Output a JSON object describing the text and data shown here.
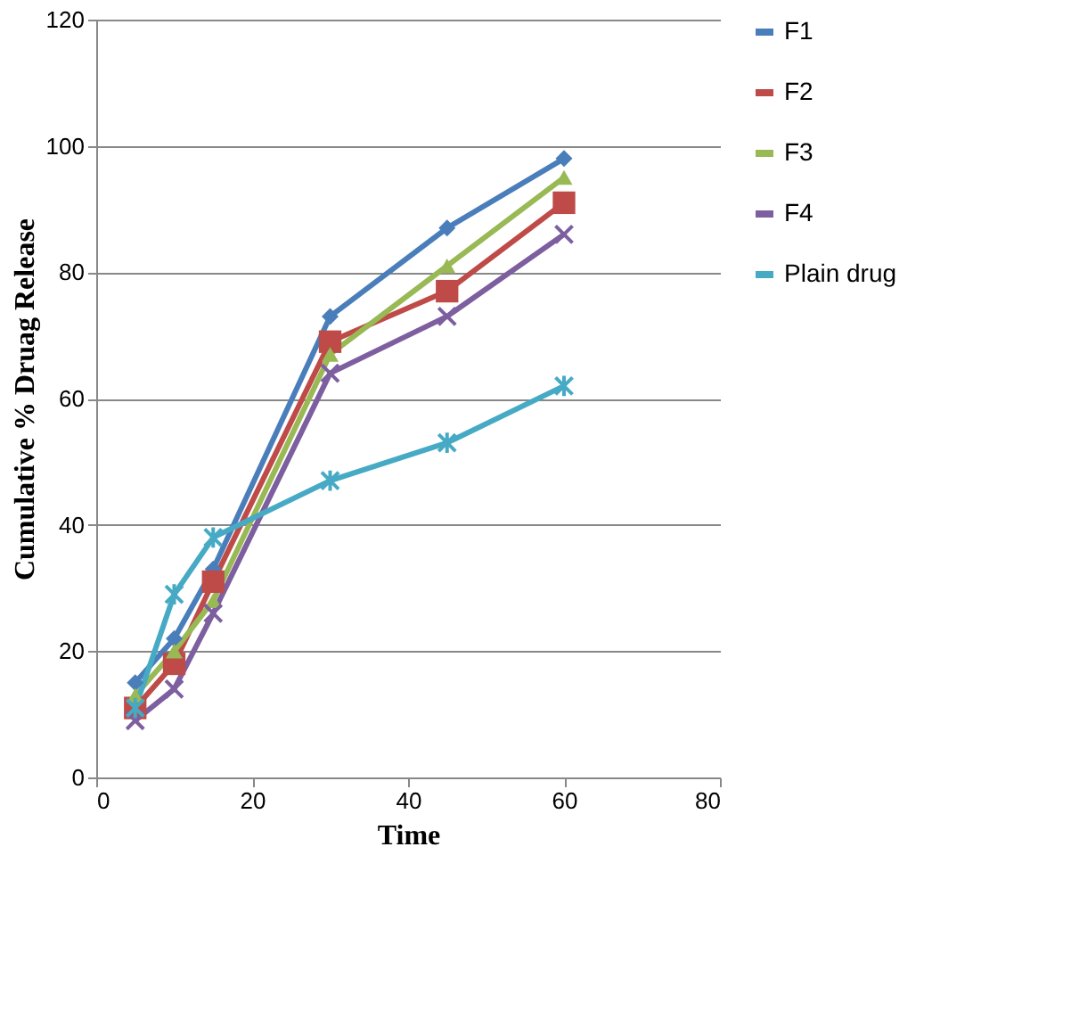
{
  "chart_data": {
    "type": "line",
    "xlabel": "Time",
    "ylabel": "Cumulative % Druag Release",
    "x": [
      5,
      10,
      15,
      30,
      45,
      60
    ],
    "xlim": [
      0,
      80
    ],
    "xticks": [
      0,
      20,
      40,
      60,
      80
    ],
    "ylim": [
      0,
      120
    ],
    "yticks": [
      0,
      20,
      40,
      60,
      80,
      100,
      120
    ],
    "grid": "y",
    "legend": "right",
    "series": [
      {
        "name": "F1",
        "color": "#4a7ebb",
        "marker": "diamond",
        "values": [
          15,
          22,
          33,
          73,
          87,
          98
        ]
      },
      {
        "name": "F2",
        "color": "#be4b48",
        "marker": "square",
        "values": [
          11,
          18,
          31,
          69,
          77,
          91
        ]
      },
      {
        "name": "F3",
        "color": "#98b954",
        "marker": "triangle",
        "values": [
          13,
          20,
          28,
          67,
          81,
          95
        ]
      },
      {
        "name": "F4",
        "color": "#7d5fa0",
        "marker": "cross",
        "values": [
          9,
          14,
          26,
          64,
          73,
          86
        ]
      },
      {
        "name": "Plain drug",
        "color": "#46aac5",
        "marker": "cross",
        "values": [
          11,
          29,
          38,
          47,
          53,
          62
        ]
      }
    ]
  }
}
